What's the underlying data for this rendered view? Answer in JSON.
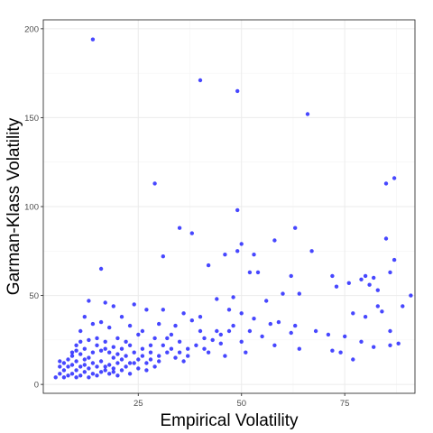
{
  "chart_data": {
    "type": "scatter",
    "title": "",
    "xlabel": "Empirical Volatility",
    "ylabel": "Garman-Klass Volatility",
    "xlim": [
      2,
      92
    ],
    "ylim": [
      -5,
      205
    ],
    "x_ticks": [
      25,
      50,
      75
    ],
    "x_tick_labels": [
      "25",
      "50",
      "75"
    ],
    "y_ticks": [
      0,
      50,
      100,
      150,
      200
    ],
    "y_tick_labels": [
      "0",
      "50",
      "100",
      "150",
      "200"
    ],
    "grid": true,
    "legend": "none",
    "point_color": "#0000ff",
    "points": [
      [
        14,
        194
      ],
      [
        40,
        171
      ],
      [
        49,
        165
      ],
      [
        66,
        152
      ],
      [
        29,
        113
      ],
      [
        87,
        116
      ],
      [
        85,
        113
      ],
      [
        49,
        98
      ],
      [
        35,
        88
      ],
      [
        63,
        88
      ],
      [
        38,
        85
      ],
      [
        85,
        82
      ],
      [
        58,
        81
      ],
      [
        50,
        79
      ],
      [
        67,
        75
      ],
      [
        49,
        75
      ],
      [
        53,
        73
      ],
      [
        46,
        73
      ],
      [
        31,
        72
      ],
      [
        87,
        70
      ],
      [
        42,
        67
      ],
      [
        16,
        65
      ],
      [
        52,
        63
      ],
      [
        54,
        63
      ],
      [
        62,
        61
      ],
      [
        72,
        61
      ],
      [
        86,
        63
      ],
      [
        80,
        61
      ],
      [
        82,
        60
      ],
      [
        79,
        59
      ],
      [
        76,
        57
      ],
      [
        81,
        56
      ],
      [
        73,
        55
      ],
      [
        91,
        50
      ],
      [
        83,
        53
      ],
      [
        60,
        51
      ],
      [
        64,
        51
      ],
      [
        48,
        49
      ],
      [
        44,
        48
      ],
      [
        56,
        47
      ],
      [
        47,
        42
      ],
      [
        36,
        40
      ],
      [
        50,
        40
      ],
      [
        13,
        47
      ],
      [
        17,
        46
      ],
      [
        19,
        44
      ],
      [
        24,
        45
      ],
      [
        27,
        42
      ],
      [
        31,
        42
      ],
      [
        40,
        38
      ],
      [
        53,
        37
      ],
      [
        59,
        35
      ],
      [
        63,
        33
      ],
      [
        68,
        30
      ],
      [
        62,
        29
      ],
      [
        71,
        28
      ],
      [
        55,
        27
      ],
      [
        44,
        30
      ],
      [
        48,
        33
      ],
      [
        34,
        33
      ],
      [
        41,
        26
      ],
      [
        50,
        24
      ],
      [
        58,
        22
      ],
      [
        64,
        20
      ],
      [
        72,
        19
      ],
      [
        74,
        18
      ],
      [
        77,
        14
      ],
      [
        79,
        24
      ],
      [
        82,
        21
      ],
      [
        88,
        23
      ],
      [
        86,
        22
      ],
      [
        80,
        38
      ],
      [
        84,
        41
      ],
      [
        83,
        44
      ],
      [
        89,
        44
      ],
      [
        77,
        40
      ],
      [
        86,
        30
      ],
      [
        75,
        27
      ],
      [
        37,
        20
      ],
      [
        42,
        18
      ],
      [
        46,
        16
      ],
      [
        51,
        18
      ],
      [
        40,
        30
      ],
      [
        38,
        36
      ],
      [
        52,
        30
      ],
      [
        57,
        34
      ],
      [
        45,
        23
      ],
      [
        33,
        28
      ],
      [
        30,
        34
      ],
      [
        35,
        24
      ],
      [
        26,
        30
      ],
      [
        29,
        26
      ],
      [
        12,
        38
      ],
      [
        14,
        34
      ],
      [
        16,
        35
      ],
      [
        11,
        30
      ],
      [
        18,
        32
      ],
      [
        21,
        38
      ],
      [
        23,
        33
      ],
      [
        25,
        28
      ],
      [
        28,
        22
      ],
      [
        22,
        24
      ],
      [
        20,
        26
      ],
      [
        17,
        24
      ],
      [
        15,
        26
      ],
      [
        13,
        25
      ],
      [
        10,
        22
      ],
      [
        12,
        20
      ],
      [
        14,
        18
      ],
      [
        16,
        19
      ],
      [
        18,
        18
      ],
      [
        20,
        17
      ],
      [
        22,
        16
      ],
      [
        24,
        18
      ],
      [
        26,
        16
      ],
      [
        28,
        14
      ],
      [
        30,
        13
      ],
      [
        32,
        18
      ],
      [
        34,
        15
      ],
      [
        36,
        13
      ],
      [
        24,
        12
      ],
      [
        22,
        10
      ],
      [
        20,
        12
      ],
      [
        18,
        11
      ],
      [
        16,
        13
      ],
      [
        14,
        12
      ],
      [
        12,
        11
      ],
      [
        10,
        13
      ],
      [
        8,
        10
      ],
      [
        7,
        8
      ],
      [
        6,
        6
      ],
      [
        5,
        4
      ],
      [
        8,
        14
      ],
      [
        9,
        16
      ],
      [
        11,
        17
      ],
      [
        13,
        15
      ],
      [
        15,
        10
      ],
      [
        17,
        8
      ],
      [
        19,
        7
      ],
      [
        21,
        8
      ],
      [
        23,
        6
      ],
      [
        25,
        9
      ],
      [
        27,
        8
      ],
      [
        29,
        10
      ],
      [
        9,
        6
      ],
      [
        10,
        8
      ],
      [
        11,
        5
      ],
      [
        12,
        7
      ],
      [
        13,
        9
      ],
      [
        14,
        6
      ],
      [
        15,
        5
      ],
      [
        16,
        7
      ],
      [
        17,
        10
      ],
      [
        18,
        6
      ],
      [
        19,
        9
      ],
      [
        20,
        5
      ],
      [
        6,
        10
      ],
      [
        7,
        12
      ],
      [
        8,
        5
      ],
      [
        9,
        11
      ],
      [
        10,
        4
      ],
      [
        11,
        10
      ],
      [
        12,
        14
      ],
      [
        13,
        4
      ],
      [
        7,
        4
      ],
      [
        6,
        13
      ],
      [
        21,
        14
      ],
      [
        23,
        12
      ],
      [
        25,
        14
      ],
      [
        27,
        12
      ],
      [
        19,
        15
      ],
      [
        31,
        22
      ],
      [
        33,
        20
      ],
      [
        35,
        18
      ],
      [
        37,
        16
      ],
      [
        39,
        22
      ],
      [
        41,
        20
      ],
      [
        43,
        25
      ],
      [
        45,
        28
      ],
      [
        47,
        30
      ],
      [
        30,
        16
      ],
      [
        32,
        26
      ],
      [
        10,
        19
      ],
      [
        9,
        18
      ],
      [
        11,
        24
      ],
      [
        15,
        22
      ],
      [
        17,
        20
      ],
      [
        19,
        21
      ],
      [
        21,
        20
      ],
      [
        23,
        22
      ],
      [
        26,
        20
      ],
      [
        28,
        18
      ]
    ]
  }
}
